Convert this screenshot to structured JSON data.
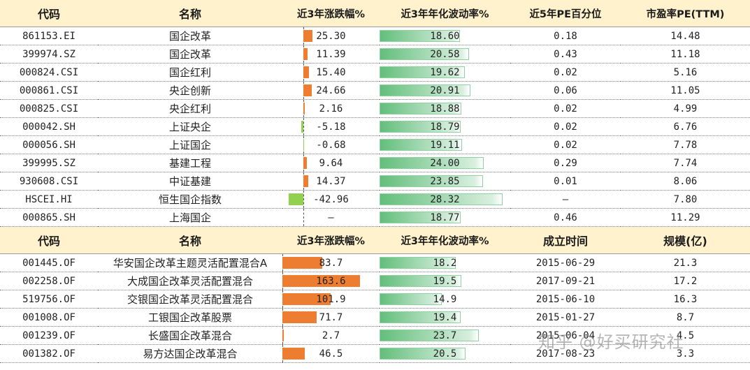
{
  "index_table": {
    "headers": [
      "代码",
      "名称",
      "近3年涨跌幅%",
      "近3年年化波动率%",
      "近5年PE百分位",
      "市盈率PE(TTM)"
    ],
    "rows": [
      {
        "code": "861153.EI",
        "name": "国企改革",
        "ret3y": "25.30",
        "ret3y_value": 25.3,
        "vol3y": "18.60",
        "vol3y_value": 18.6,
        "pe_pct": "0.18",
        "pe_ttm": "14.48"
      },
      {
        "code": "399974.SZ",
        "name": "国企改革",
        "ret3y": "11.39",
        "ret3y_value": 11.39,
        "vol3y": "20.58",
        "vol3y_value": 20.58,
        "pe_pct": "0.43",
        "pe_ttm": "11.18"
      },
      {
        "code": "000824.CSI",
        "name": "国企红利",
        "ret3y": "15.40",
        "ret3y_value": 15.4,
        "vol3y": "19.62",
        "vol3y_value": 19.62,
        "pe_pct": "0.02",
        "pe_ttm": "5.16"
      },
      {
        "code": "000861.CSI",
        "name": "央企创新",
        "ret3y": "24.66",
        "ret3y_value": 24.66,
        "vol3y": "20.91",
        "vol3y_value": 20.91,
        "pe_pct": "0.06",
        "pe_ttm": "11.05"
      },
      {
        "code": "000825.CSI",
        "name": "央企红利",
        "ret3y": "2.16",
        "ret3y_value": 2.16,
        "vol3y": "18.88",
        "vol3y_value": 18.88,
        "pe_pct": "0.02",
        "pe_ttm": "4.99"
      },
      {
        "code": "000042.SH",
        "name": "上证央企",
        "ret3y": "-5.18",
        "ret3y_value": -5.18,
        "vol3y": "18.79",
        "vol3y_value": 18.79,
        "pe_pct": "0.02",
        "pe_ttm": "6.76"
      },
      {
        "code": "000056.SH",
        "name": "上证国企",
        "ret3y": "-0.68",
        "ret3y_value": -0.68,
        "vol3y": "19.11",
        "vol3y_value": 19.11,
        "pe_pct": "0.02",
        "pe_ttm": "7.78"
      },
      {
        "code": "399995.SZ",
        "name": "基建工程",
        "ret3y": "9.64",
        "ret3y_value": 9.64,
        "vol3y": "24.00",
        "vol3y_value": 24.0,
        "pe_pct": "0.29",
        "pe_ttm": "7.74"
      },
      {
        "code": "930608.CSI",
        "name": "中证基建",
        "ret3y": "14.37",
        "ret3y_value": 14.37,
        "vol3y": "23.85",
        "vol3y_value": 23.85,
        "pe_pct": "0.01",
        "pe_ttm": "8.06"
      },
      {
        "code": "HSCEI.HI",
        "name": "恒生国企指数",
        "ret3y": "-42.96",
        "ret3y_value": -42.96,
        "vol3y": "28.32",
        "vol3y_value": 28.32,
        "pe_pct": "—",
        "pe_ttm": "7.80"
      },
      {
        "code": "000865.SH",
        "name": "上海国企",
        "ret3y": "—",
        "ret3y_value": null,
        "vol3y": "18.77",
        "vol3y_value": 18.77,
        "pe_pct": "0.46",
        "pe_ttm": "11.29"
      }
    ]
  },
  "fund_table": {
    "headers": [
      "代码",
      "名称",
      "近3年涨跌幅%",
      "近3年年化波动率%",
      "成立时间",
      "规模(亿)"
    ],
    "rows": [
      {
        "code": "001445.OF",
        "name": "华安国企改革主题灵活配置混合A",
        "ret3y": "83.7",
        "ret3y_value": 83.7,
        "vol3y": "18.2",
        "vol3y_value": 18.2,
        "inception": "2015-06-29",
        "size": "21.3"
      },
      {
        "code": "002258.OF",
        "name": "大成国企改革灵活配置混合",
        "ret3y": "163.6",
        "ret3y_value": 163.6,
        "vol3y": "19.5",
        "vol3y_value": 19.5,
        "inception": "2017-09-21",
        "size": "17.2"
      },
      {
        "code": "519756.OF",
        "name": "交银国企改革灵活配置混合",
        "ret3y": "101.9",
        "ret3y_value": 101.9,
        "vol3y": "14.9",
        "vol3y_value": 14.9,
        "inception": "2015-06-10",
        "size": "16.3"
      },
      {
        "code": "001008.OF",
        "name": "工银国企改革股票",
        "ret3y": "71.7",
        "ret3y_value": 71.7,
        "vol3y": "19.4",
        "vol3y_value": 19.4,
        "inception": "2015-01-27",
        "size": "8.7"
      },
      {
        "code": "001239.OF",
        "name": "长盛国企改革混合",
        "ret3y": "2.7",
        "ret3y_value": 2.7,
        "vol3y": "23.7",
        "vol3y_value": 23.7,
        "inception": "2015-06-04",
        "size": "4.5"
      },
      {
        "code": "001382.OF",
        "name": "易方达国企改革混合",
        "ret3y": "46.5",
        "ret3y_value": 46.5,
        "vol3y": "20.5",
        "vol3y_value": 20.5,
        "inception": "2017-08-23",
        "size": "3.3"
      }
    ]
  },
  "watermark": "知乎 @好买研究社",
  "colors": {
    "header_bg": "#fff2cc",
    "positive_bar": "#ed7d31",
    "negative_bar": "#92d050",
    "volatility_bar": "#63be7b"
  }
}
